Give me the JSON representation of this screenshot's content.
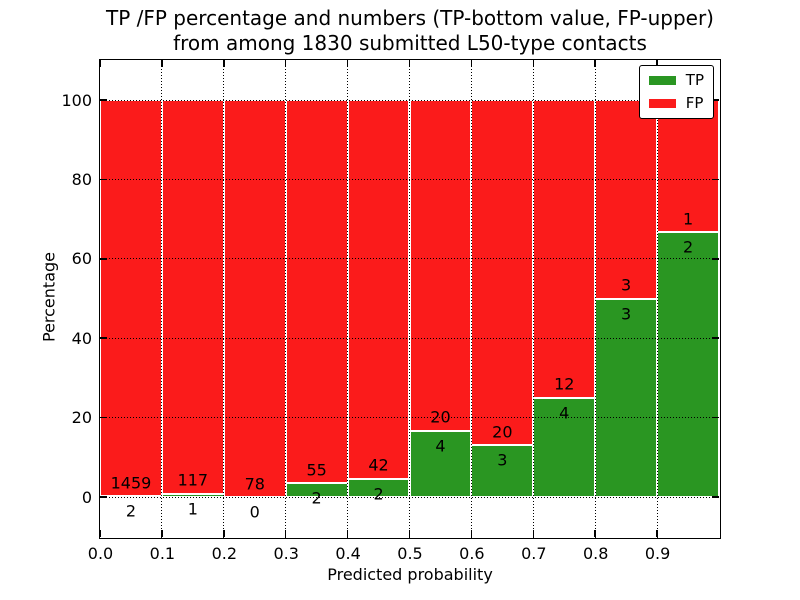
{
  "chart_data": {
    "type": "bar",
    "stacked": true,
    "title": "TP /FP percentage and numbers (TP-bottom value, FP-upper)\nfrom among 1830 submitted L50-type contacts",
    "title_line1": "TP /FP percentage and numbers (TP-bottom value, FP-upper)",
    "title_line2": "from among 1830 submitted L50-type contacts",
    "xlabel": "Predicted probability",
    "ylabel": "Percentage",
    "xlim": [
      0.0,
      1.0
    ],
    "ylim": [
      -10,
      110
    ],
    "grid": true,
    "legend_position": "upper right",
    "xticks": [
      "0.0",
      "0.1",
      "0.2",
      "0.3",
      "0.4",
      "0.5",
      "0.6",
      "0.7",
      "0.8",
      "0.9"
    ],
    "yticks": [
      0,
      20,
      40,
      60,
      80,
      100
    ],
    "series": [
      {
        "name": "TP",
        "color": "#2a9622"
      },
      {
        "name": "FP",
        "color": "#fb1b1b"
      }
    ],
    "bins": [
      {
        "range": [
          0.0,
          0.1
        ],
        "tp": 2,
        "fp": 1459,
        "tp_pct": 0.14,
        "fp_pct": 99.86
      },
      {
        "range": [
          0.1,
          0.2
        ],
        "tp": 1,
        "fp": 117,
        "tp_pct": 0.85,
        "fp_pct": 99.15
      },
      {
        "range": [
          0.2,
          0.3
        ],
        "tp": 0,
        "fp": 78,
        "tp_pct": 0.0,
        "fp_pct": 100.0
      },
      {
        "range": [
          0.3,
          0.4
        ],
        "tp": 2,
        "fp": 55,
        "tp_pct": 3.51,
        "fp_pct": 96.49
      },
      {
        "range": [
          0.4,
          0.5
        ],
        "tp": 2,
        "fp": 42,
        "tp_pct": 4.55,
        "fp_pct": 95.45
      },
      {
        "range": [
          0.5,
          0.6
        ],
        "tp": 4,
        "fp": 20,
        "tp_pct": 16.67,
        "fp_pct": 83.33
      },
      {
        "range": [
          0.6,
          0.7
        ],
        "tp": 3,
        "fp": 20,
        "tp_pct": 13.04,
        "fp_pct": 86.96
      },
      {
        "range": [
          0.7,
          0.8
        ],
        "tp": 4,
        "fp": 12,
        "tp_pct": 25.0,
        "fp_pct": 75.0
      },
      {
        "range": [
          0.8,
          0.9
        ],
        "tp": 3,
        "fp": 3,
        "tp_pct": 50.0,
        "fp_pct": 50.0
      },
      {
        "range": [
          0.9,
          1.0
        ],
        "tp": 2,
        "fp": 1,
        "tp_pct": 66.67,
        "fp_pct": 33.33
      }
    ]
  }
}
